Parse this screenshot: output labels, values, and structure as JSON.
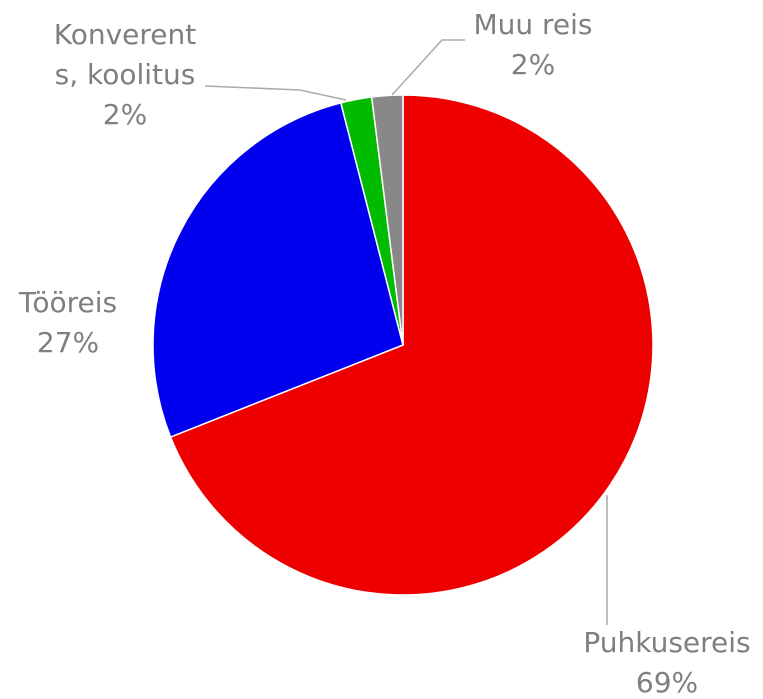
{
  "chart_data": {
    "type": "pie",
    "categories": [
      "Puhkusereis",
      "Tööreis",
      "Konverents, koolitus",
      "Muu reis"
    ],
    "values": [
      69,
      27,
      2,
      2
    ],
    "value_labels": [
      "69%",
      "27%",
      "2%",
      "2%"
    ],
    "colors": [
      "#ee0000",
      "#0000ee",
      "#00bb00",
      "#888888"
    ]
  }
}
